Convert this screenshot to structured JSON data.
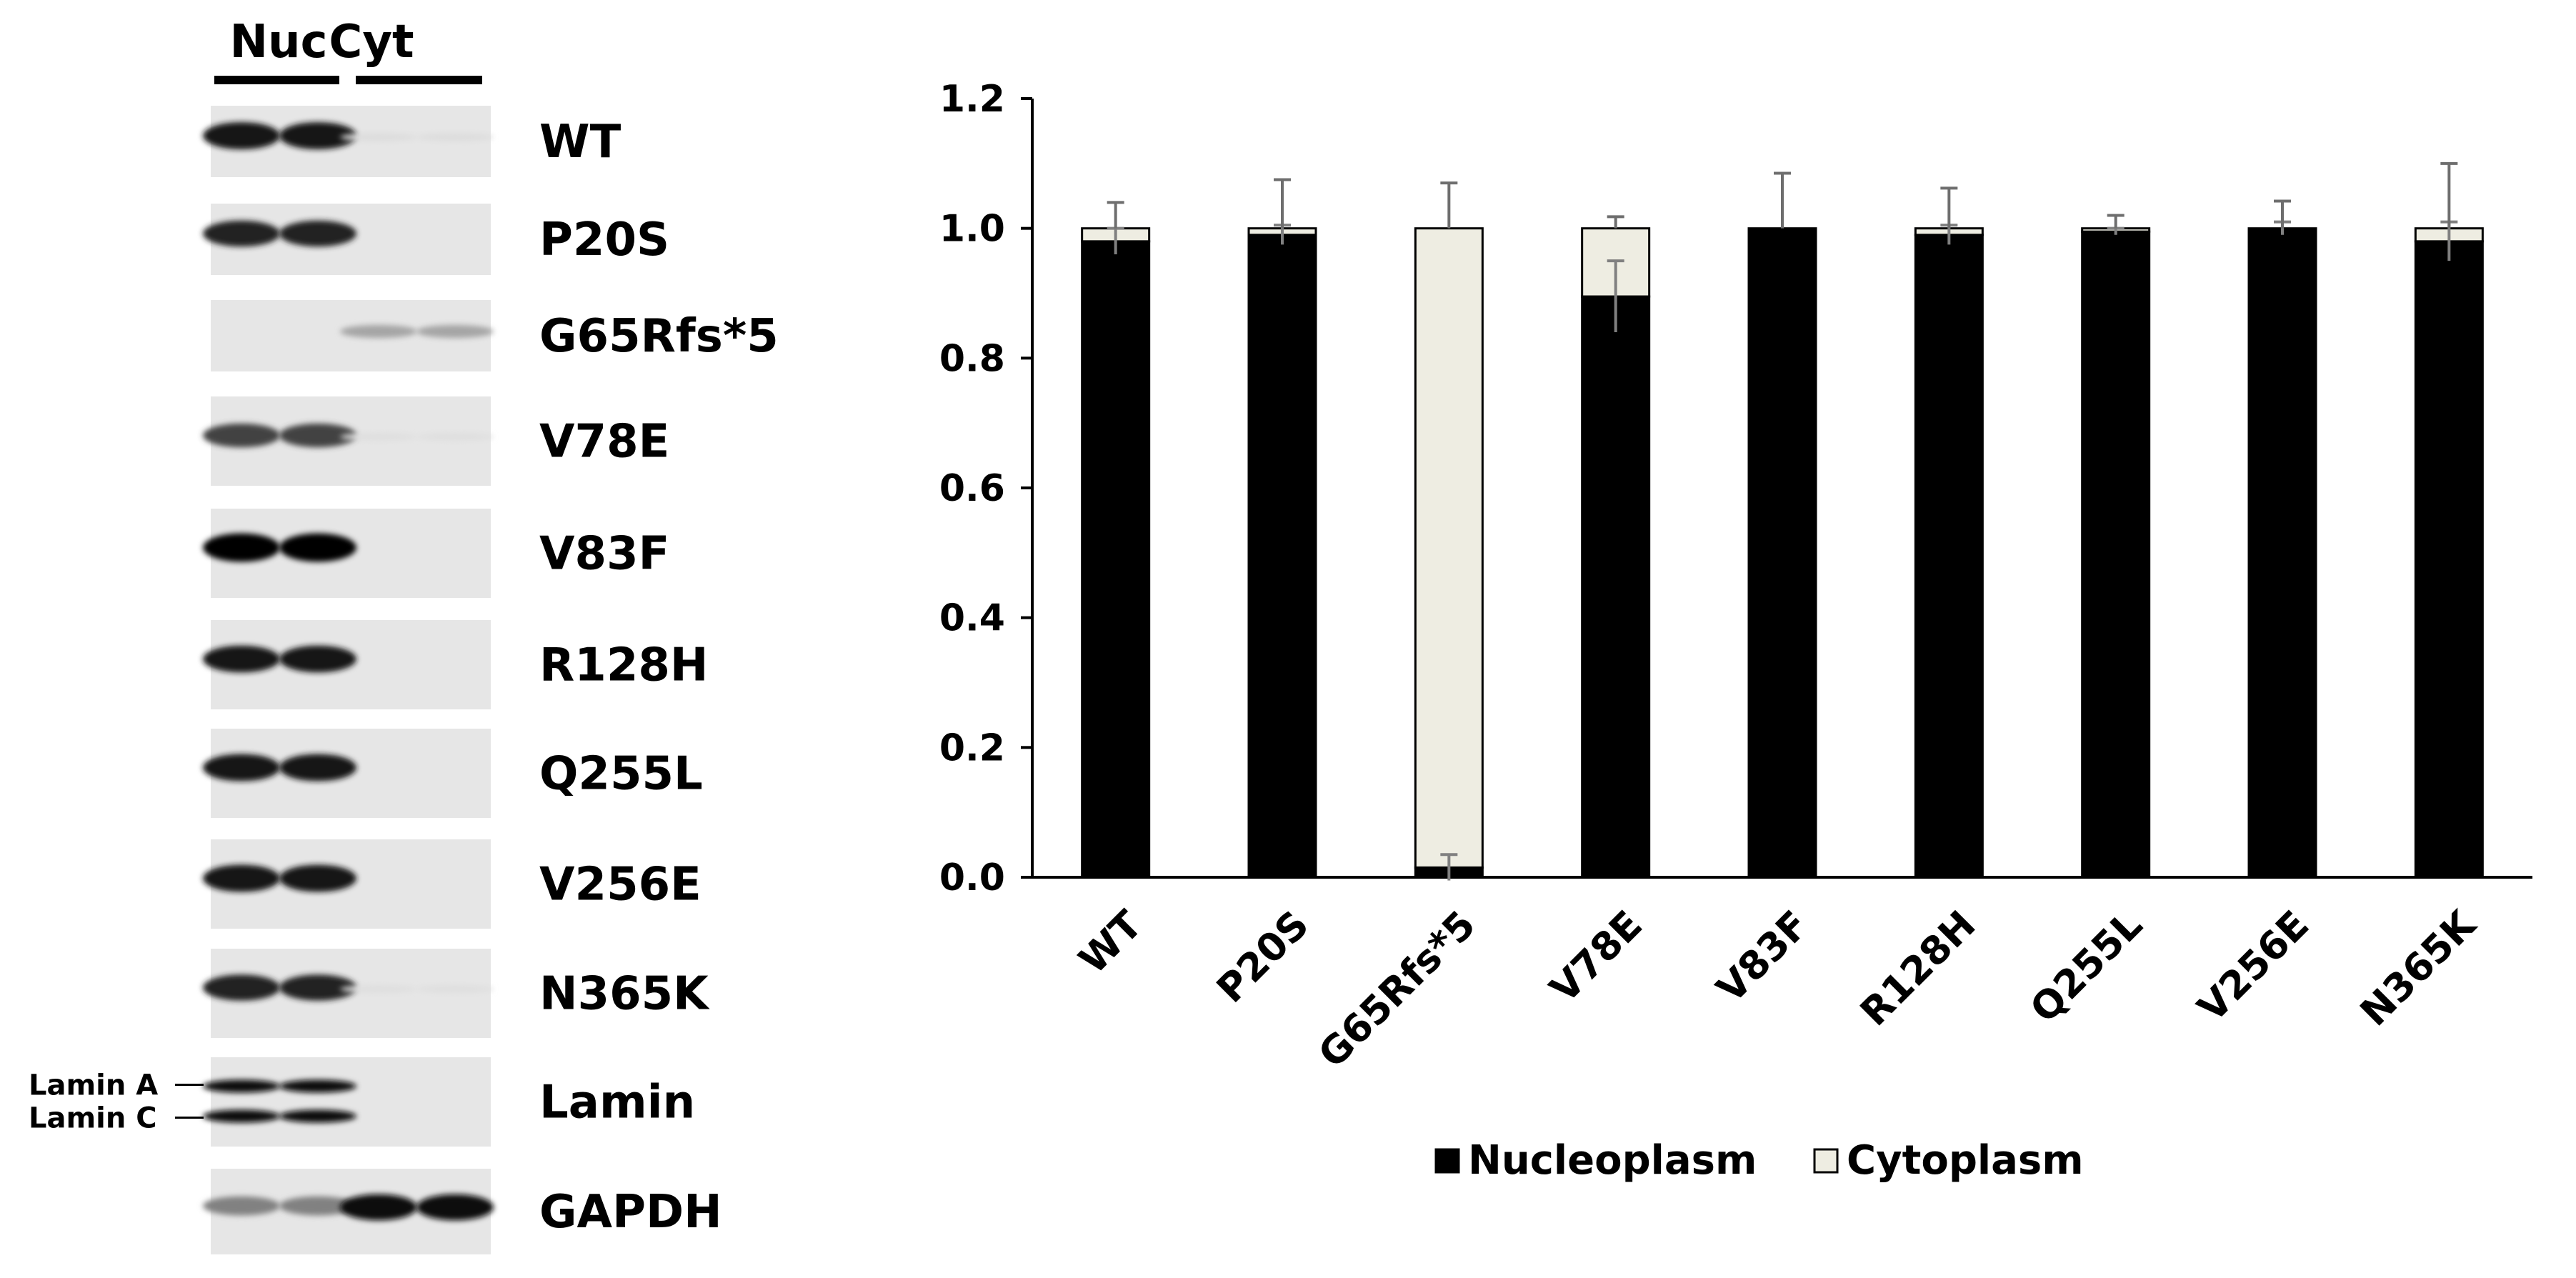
{
  "blot": {
    "lane_headers": [
      "Nuc",
      "Cyt"
    ],
    "panels": [
      {
        "label": "WT",
        "nuc_intensity": 0.92,
        "cyt_intensity": 0.06
      },
      {
        "label": "P20S",
        "nuc_intensity": 0.85,
        "cyt_intensity": 0.0
      },
      {
        "label": "G65Rfs*5",
        "nuc_intensity": 0.0,
        "cyt_intensity": 0.3
      },
      {
        "label": "V78E",
        "nuc_intensity": 0.72,
        "cyt_intensity": 0.05
      },
      {
        "label": "V83F",
        "nuc_intensity": 1.0,
        "cyt_intensity": 0.0
      },
      {
        "label": "R128H",
        "nuc_intensity": 0.9,
        "cyt_intensity": 0.0
      },
      {
        "label": "Q255L",
        "nuc_intensity": 0.92,
        "cyt_intensity": 0.0
      },
      {
        "label": "V256E",
        "nuc_intensity": 0.92,
        "cyt_intensity": 0.0
      },
      {
        "label": "N365K",
        "nuc_intensity": 0.85,
        "cyt_intensity": 0.05
      },
      {
        "label": "Lamin",
        "nuc_intensity": 0.95,
        "cyt_intensity": 0.0,
        "sub_labels": [
          "Lamin A",
          "Lamin C"
        ]
      },
      {
        "label": "GAPDH",
        "nuc_intensity": 0.45,
        "cyt_intensity": 0.95
      }
    ]
  },
  "chart_data": {
    "type": "bar",
    "stacked": true,
    "title": "",
    "xlabel": "",
    "ylabel": "",
    "ylim": [
      0,
      1.2
    ],
    "yticks": [
      "0.0",
      "0.2",
      "0.4",
      "0.6",
      "0.8",
      "1.0",
      "1.2"
    ],
    "categories": [
      "WT",
      "P20S",
      "G65Rfs*5",
      "V78E",
      "V83F",
      "R128H",
      "Q255L",
      "V256E",
      "N365K"
    ],
    "series": [
      {
        "name": "Nucleoplasm",
        "color": "#000000",
        "values": [
          0.98,
          0.99,
          0.015,
          0.895,
          1.0,
          0.99,
          0.995,
          1.0,
          0.98
        ],
        "errors": [
          0.02,
          0.015,
          0.02,
          0.055,
          0.0,
          0.015,
          0.005,
          0.01,
          0.03
        ]
      },
      {
        "name": "Cytoplasm",
        "color": "#eeede2",
        "values": [
          0.02,
          0.01,
          0.985,
          0.105,
          0.0,
          0.01,
          0.005,
          0.0,
          0.02
        ],
        "errors": [
          0.04,
          0.075,
          0.07,
          0.018,
          0.085,
          0.062,
          0.02,
          0.042,
          0.1
        ]
      }
    ],
    "legend": [
      "Nucleoplasm",
      "Cytoplasm"
    ],
    "legend_position": "bottom",
    "grid": false
  }
}
